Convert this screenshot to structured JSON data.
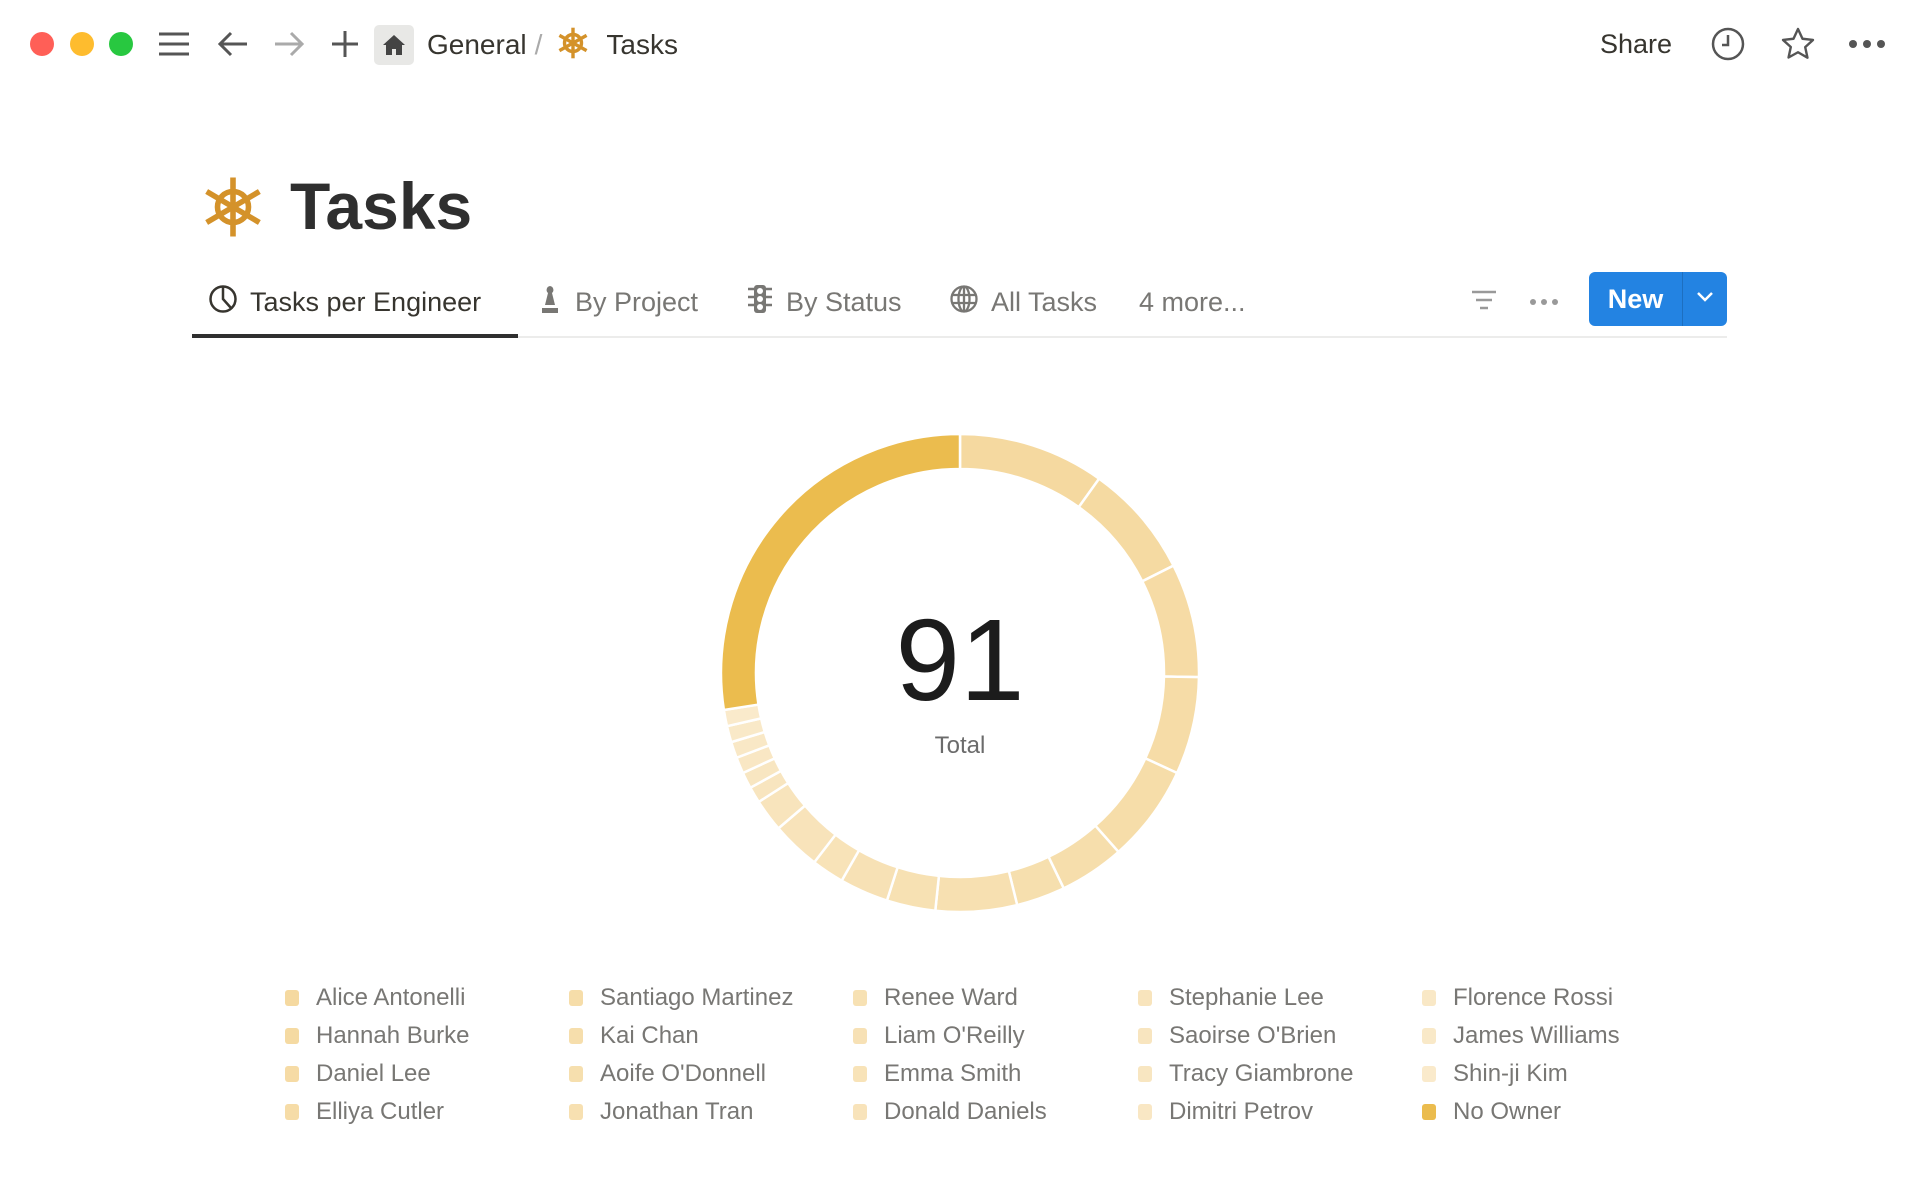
{
  "window": {
    "traffic_lights": {
      "close": "#ff5f57",
      "minimize": "#febc2e",
      "zoom": "#28c840"
    }
  },
  "topbar": {
    "breadcrumb": [
      {
        "label": "General",
        "icon": "home-icon"
      },
      {
        "label": "Tasks",
        "icon": "helm-icon"
      }
    ],
    "separator": "/",
    "share_label": "Share",
    "icons": [
      "menu-icon",
      "back-arrow-icon",
      "forward-arrow-icon",
      "plus-icon",
      "clock-icon",
      "star-icon",
      "more-icon"
    ]
  },
  "page": {
    "title": "Tasks",
    "icon": "helm-icon",
    "icon_color": "#d4922a"
  },
  "tabs": [
    {
      "label": "Tasks per Engineer",
      "icon": "pie-chart-icon",
      "active": true
    },
    {
      "label": "By Project",
      "icon": "chess-piece-icon"
    },
    {
      "label": "By Status",
      "icon": "traffic-light-icon"
    },
    {
      "label": "All Tasks",
      "icon": "globe-icon"
    },
    {
      "label": "4 more..."
    }
  ],
  "toolbar": {
    "new_label": "New",
    "accent": "#2383e2"
  },
  "chart_data": {
    "type": "pie",
    "variant": "donut",
    "center_value": "91",
    "center_label": "Total",
    "legend_placement": "bottom",
    "categories": [
      "Alice Antonelli",
      "Hannah Burke",
      "Daniel Lee",
      "Elliya Cutler",
      "Santiago Martinez",
      "Kai Chan",
      "Aoife O'Donnell",
      "Jonathan Tran",
      "Renee Ward",
      "Liam O'Reilly",
      "Emma Smith",
      "Donald Daniels",
      "Stephanie Lee",
      "Saoirse O'Brien",
      "Tracy Giambrone",
      "Dimitri Petrov",
      "Florence Rossi",
      "James Williams",
      "Shin-ji Kim",
      "No Owner"
    ],
    "values": [
      9,
      7,
      7,
      6,
      6,
      4,
      3,
      5,
      3,
      3,
      2,
      3,
      2,
      1,
      1,
      1,
      1,
      1,
      1,
      25
    ],
    "colors": {
      "highlight": "#ebbc4e",
      "base": "#f5d9a0"
    }
  }
}
